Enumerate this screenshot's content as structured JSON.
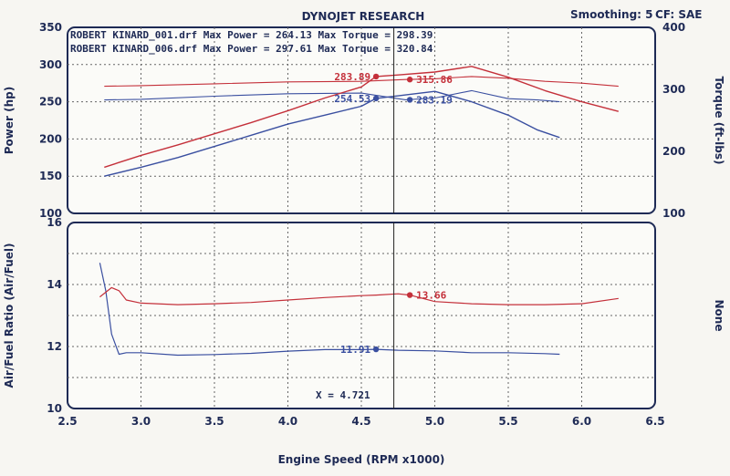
{
  "header": {
    "title": "DYNOJET RESEARCH",
    "smoothing": "Smoothing: 5",
    "cf": "CF: SAE"
  },
  "legend": [
    "ROBERT KINARD_001.drf Max Power = 264.13 Max Torque = 298.39",
    "ROBERT KINARD_006.drf Max Power = 297.61 Max Torque = 320.84"
  ],
  "cursor": {
    "label": "X = 4.721",
    "value": 4.721
  },
  "colors": {
    "run_001": "#3a4fa0",
    "run_006": "#c4303a",
    "grid": "#555555",
    "text": "#1e2a55"
  },
  "chart_data": [
    {
      "type": "line",
      "xlabel": "Engine Speed (RPM x1000)",
      "ylabel": "Power (hp)",
      "y2label": "Torque (ft-lbs)",
      "xlim": [
        2.5,
        6.5
      ],
      "ylim": [
        100,
        350
      ],
      "y2lim": [
        100,
        400
      ],
      "xticks": [
        "2.5",
        "3.0",
        "3.5",
        "4.0",
        "4.5",
        "5.0",
        "5.5",
        "6.0",
        "6.5"
      ],
      "yticks": [
        "100",
        "150",
        "200",
        "250",
        "300",
        "350"
      ],
      "y2ticks": [
        "100",
        "200",
        "300",
        "400"
      ],
      "grid": true,
      "series": [
        {
          "name": "ROBERT KINARD_001.drf",
          "measure": "Power",
          "axis": "left",
          "color": "#3a4fa0",
          "x": [
            2.75,
            3.0,
            3.25,
            3.5,
            3.75,
            4.0,
            4.25,
            4.5,
            4.6,
            4.75,
            5.0,
            5.25,
            5.5,
            5.7,
            5.85
          ],
          "y": [
            150,
            162,
            175,
            190,
            205,
            220,
            232,
            244,
            254.5,
            258,
            264,
            250,
            232,
            212,
            202
          ]
        },
        {
          "name": "ROBERT KINARD_001.drf",
          "measure": "Torque",
          "axis": "right",
          "color": "#3a4fa0",
          "x": [
            2.75,
            3.0,
            3.5,
            4.0,
            4.5,
            4.8,
            5.0,
            5.25,
            5.5,
            5.7,
            5.85
          ],
          "y": [
            283,
            284,
            289,
            293,
            294,
            283.2,
            286,
            298,
            285,
            283,
            280
          ]
        },
        {
          "name": "ROBERT KINARD_006.drf",
          "measure": "Power",
          "axis": "left",
          "color": "#c4303a",
          "x": [
            2.75,
            3.0,
            3.25,
            3.5,
            3.75,
            4.0,
            4.25,
            4.5,
            4.6,
            4.75,
            5.0,
            5.25,
            5.5,
            5.75,
            6.0,
            6.25
          ],
          "y": [
            162,
            178,
            192,
            207,
            222,
            238,
            255,
            270,
            283.9,
            286,
            290,
            297.6,
            283,
            265,
            250,
            237
          ]
        },
        {
          "name": "ROBERT KINARD_006.drf",
          "measure": "Torque",
          "axis": "right",
          "color": "#c4303a",
          "x": [
            2.75,
            3.0,
            3.5,
            4.0,
            4.5,
            4.8,
            5.0,
            5.25,
            5.5,
            5.75,
            6.0,
            6.25
          ],
          "y": [
            305,
            306,
            309,
            312,
            313,
            315.9,
            317,
            320.8,
            318,
            313,
            310,
            305
          ]
        }
      ],
      "cursor_labels": [
        {
          "text": "283.89",
          "color": "#c4303a",
          "x": 4.6,
          "y": 283.89,
          "axis": "left"
        },
        {
          "text": "315.86",
          "color": "#c4303a",
          "x": 4.83,
          "y": 315.86,
          "axis": "right"
        },
        {
          "text": "254.53",
          "color": "#3a4fa0",
          "x": 4.6,
          "y": 254.53,
          "axis": "left"
        },
        {
          "text": "283.19",
          "color": "#3a4fa0",
          "x": 4.83,
          "y": 283.19,
          "axis": "right"
        }
      ]
    },
    {
      "type": "line",
      "xlabel": "Engine Speed (RPM x1000)",
      "ylabel": "Air/Fuel Ratio (Air/Fuel)",
      "y2label": "None",
      "xlim": [
        2.5,
        6.5
      ],
      "ylim": [
        10,
        16
      ],
      "xticks": [
        "2.5",
        "3.0",
        "3.5",
        "4.0",
        "4.5",
        "5.0",
        "5.5",
        "6.0",
        "6.5"
      ],
      "yticks": [
        "10",
        "12",
        "14",
        "16"
      ],
      "grid": true,
      "series": [
        {
          "name": "ROBERT KINARD_001.drf",
          "measure": "Air/Fuel",
          "color": "#3a4fa0",
          "x": [
            2.72,
            2.76,
            2.8,
            2.85,
            2.9,
            3.0,
            3.25,
            3.5,
            3.75,
            4.0,
            4.25,
            4.5,
            4.6,
            4.75,
            5.0,
            5.25,
            5.5,
            5.75,
            5.85
          ],
          "y": [
            14.7,
            13.8,
            12.4,
            11.75,
            11.8,
            11.8,
            11.72,
            11.74,
            11.78,
            11.85,
            11.9,
            11.9,
            11.91,
            11.88,
            11.86,
            11.8,
            11.8,
            11.77,
            11.75
          ]
        },
        {
          "name": "ROBERT KINARD_006.drf",
          "measure": "Air/Fuel",
          "color": "#c4303a",
          "x": [
            2.72,
            2.8,
            2.85,
            2.9,
            3.0,
            3.25,
            3.5,
            3.75,
            4.0,
            4.25,
            4.5,
            4.6,
            4.75,
            4.83,
            5.0,
            5.25,
            5.5,
            5.75,
            6.0,
            6.25
          ],
          "y": [
            13.6,
            13.9,
            13.8,
            13.5,
            13.4,
            13.35,
            13.38,
            13.42,
            13.5,
            13.58,
            13.64,
            13.66,
            13.7,
            13.66,
            13.45,
            13.38,
            13.35,
            13.35,
            13.38,
            13.55
          ]
        }
      ],
      "cursor_labels": [
        {
          "text": "13.66",
          "color": "#c4303a",
          "x": 4.83,
          "y": 13.66
        },
        {
          "text": "11.91",
          "color": "#3a4fa0",
          "x": 4.6,
          "y": 11.91
        }
      ]
    }
  ]
}
